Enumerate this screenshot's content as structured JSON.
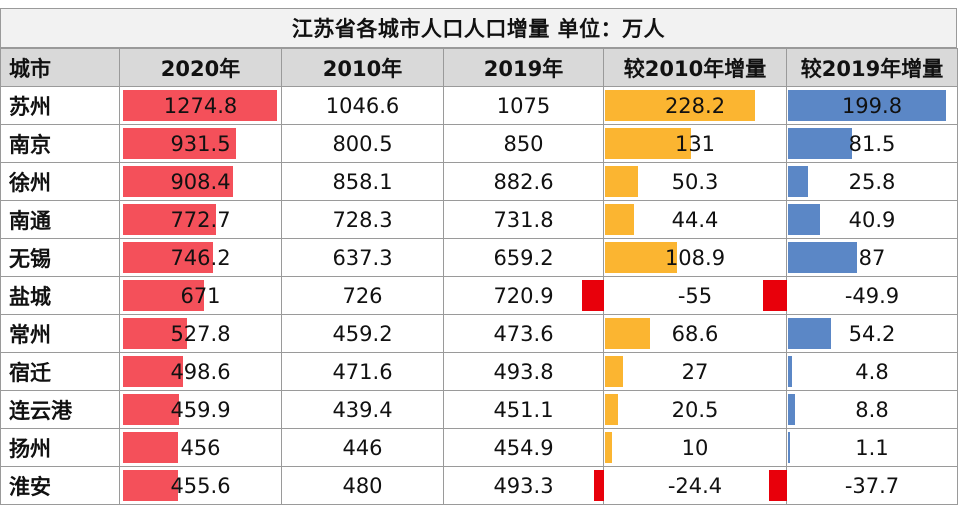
{
  "chart_data": {
    "type": "table",
    "title": "江苏省各城市人口人口增量   单位：万人",
    "columns": [
      "城市",
      "2020年",
      "2010年",
      "2019年",
      "较2010年增量",
      "较2019年增量"
    ],
    "rows": [
      {
        "city": "苏州",
        "y2020": 1274.8,
        "y2010": 1046.6,
        "y2019": 1075,
        "d2010": 228.2,
        "d2019": 199.8
      },
      {
        "city": "南京",
        "y2020": 931.5,
        "y2010": 800.5,
        "y2019": 850,
        "d2010": 131,
        "d2019": 81.5
      },
      {
        "city": "徐州",
        "y2020": 908.4,
        "y2010": 858.1,
        "y2019": 882.6,
        "d2010": 50.3,
        "d2019": 25.8
      },
      {
        "city": "南通",
        "y2020": 772.7,
        "y2010": 728.3,
        "y2019": 731.8,
        "d2010": 44.4,
        "d2019": 40.9
      },
      {
        "city": "无锡",
        "y2020": 746.2,
        "y2010": 637.3,
        "y2019": 659.2,
        "d2010": 108.9,
        "d2019": 87
      },
      {
        "city": "盐城",
        "y2020": 671,
        "y2010": 726,
        "y2019": 720.9,
        "d2010": -55,
        "d2019": -49.9
      },
      {
        "city": "常州",
        "y2020": 527.8,
        "y2010": 459.2,
        "y2019": 473.6,
        "d2010": 68.6,
        "d2019": 54.2
      },
      {
        "city": "宿迁",
        "y2020": 498.6,
        "y2010": 471.6,
        "y2019": 493.8,
        "d2010": 27,
        "d2019": 4.8
      },
      {
        "city": "连云港",
        "y2020": 459.9,
        "y2010": 439.4,
        "y2019": 451.1,
        "d2010": 20.5,
        "d2019": 8.8
      },
      {
        "city": "扬州",
        "y2020": 456,
        "y2010": 446,
        "y2019": 454.9,
        "d2010": 10,
        "d2019": 1.1
      },
      {
        "city": "淮安",
        "y2020": 455.6,
        "y2010": 480,
        "y2019": 493.3,
        "d2010": -24.4,
        "d2019": -37.7
      }
    ],
    "colors": {
      "bar_2020": "#f4505a",
      "bar_increase_2010": "#fbb531",
      "bar_increase_2019": "#5b87c6",
      "bar_negative": "#e8000b",
      "header_bg": "#d9d9d9"
    }
  }
}
